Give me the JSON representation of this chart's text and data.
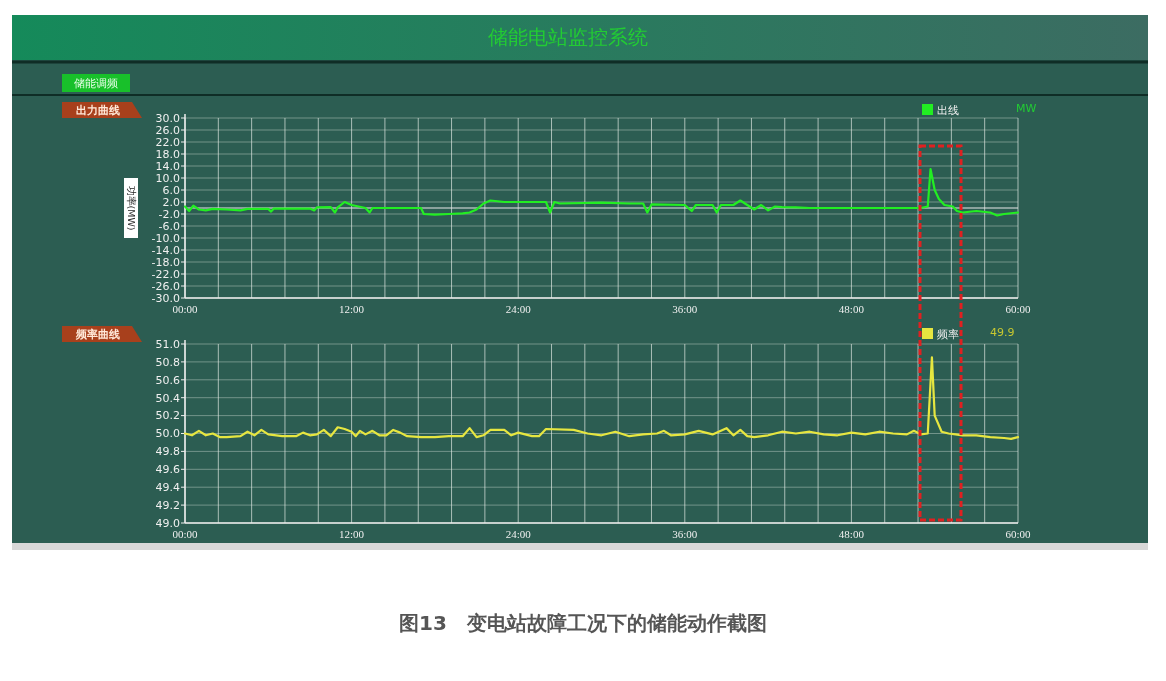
{
  "chart_data": [
    {
      "type": "line",
      "title": "出力曲线",
      "ylabel": "功率(MW)",
      "annotations": [
        "储能电站监控系统",
        "储能调频",
        "MW"
      ],
      "xlim": [
        0,
        60
      ],
      "ylim": [
        -30,
        30
      ],
      "xticks": [
        {
          "value": 0,
          "label": "00:00"
        },
        {
          "value": 2.4,
          "label": null
        },
        {
          "value": 4.8,
          "label": null
        },
        {
          "value": 7.2,
          "label": null
        },
        {
          "value": 9.6,
          "label": null
        },
        {
          "value": 12,
          "label": "12:00"
        },
        {
          "value": 14.4,
          "label": null
        },
        {
          "value": 16.8,
          "label": null
        },
        {
          "value": 19.2,
          "label": null
        },
        {
          "value": 21.6,
          "label": null
        },
        {
          "value": 24,
          "label": "24:00"
        },
        {
          "value": 26.4,
          "label": null
        },
        {
          "value": 28.8,
          "label": null
        },
        {
          "value": 31.2,
          "label": null
        },
        {
          "value": 33.6,
          "label": null
        },
        {
          "value": 36,
          "label": "36:00"
        },
        {
          "value": 38.4,
          "label": null
        },
        {
          "value": 40.8,
          "label": null
        },
        {
          "value": 43.2,
          "label": null
        },
        {
          "value": 45.6,
          "label": null
        },
        {
          "value": 48,
          "label": "48:00"
        },
        {
          "value": 50.4,
          "label": null
        },
        {
          "value": 52.8,
          "label": null
        },
        {
          "value": 55.2,
          "label": null
        },
        {
          "value": 57.6,
          "label": null
        },
        {
          "value": 60,
          "label": "60:00"
        }
      ],
      "yticks": [
        {
          "value": 30,
          "label": "30.0"
        },
        {
          "value": 26,
          "label": "26.0"
        },
        {
          "value": 22,
          "label": "22.0"
        },
        {
          "value": 18,
          "label": "18.0"
        },
        {
          "value": 14,
          "label": "14.0"
        },
        {
          "value": 10,
          "label": "10.0"
        },
        {
          "value": 6,
          "label": "6.0"
        },
        {
          "value": 2,
          "label": "2.0"
        },
        {
          "value": -2,
          "label": "-2.0"
        },
        {
          "value": -6,
          "label": "-6.0"
        },
        {
          "value": -10,
          "label": "-10.0"
        },
        {
          "value": -14,
          "label": "-14.0"
        },
        {
          "value": -18,
          "label": "-18.0"
        },
        {
          "value": -22,
          "label": "-22.0"
        },
        {
          "value": -26,
          "label": "-26.0"
        },
        {
          "value": -30,
          "label": "-30.0"
        }
      ],
      "grid": true,
      "legend": "top right",
      "ref_lines": [
        {
          "axis": "y",
          "value": 0,
          "color": "#e8e8e8"
        }
      ],
      "series": [
        {
          "name": "出线",
          "color": "#22ee22",
          "x": [
            0,
            0.3,
            0.6,
            1,
            1.5,
            2,
            3,
            4,
            4.5,
            6,
            6.2,
            6.4,
            9,
            9.3,
            9.5,
            10.5,
            10.8,
            11,
            11.5,
            12,
            12.5,
            13,
            13.3,
            13.5,
            16.5,
            17,
            17.2,
            18,
            19,
            20,
            20.5,
            21,
            21.5,
            22,
            23,
            25,
            26,
            26.3,
            26.6,
            27,
            30,
            32,
            33,
            33.3,
            33.6,
            36,
            36.5,
            36.8,
            38,
            38.3,
            38.6,
            39.5,
            40,
            40.5,
            41,
            41.5,
            42,
            42.5,
            43,
            44,
            45,
            50,
            53,
            53.5,
            53.7,
            54,
            54.3,
            54.7,
            55.3,
            55.6,
            56,
            57,
            58,
            58.5,
            59,
            60
          ],
          "values": [
            0.5,
            -1,
            0.8,
            -0.5,
            -0.8,
            -0.3,
            -0.5,
            -0.8,
            -0.3,
            -0.3,
            -1.2,
            -0.2,
            -0.2,
            -0.8,
            0.2,
            0.3,
            -1.5,
            0.2,
            2,
            1,
            0.5,
            0,
            -1.5,
            0,
            0,
            0,
            -2,
            -2.2,
            -2,
            -1.8,
            -1.5,
            -0.5,
            1.5,
            2.5,
            2,
            2,
            2,
            -1.5,
            2,
            1.5,
            1.8,
            1.5,
            1.5,
            -1.5,
            1.2,
            1,
            -1,
            1,
            1,
            -1.5,
            1,
            1,
            2.5,
            1,
            -0.5,
            1,
            -0.8,
            0.5,
            0.3,
            0.2,
            0,
            0,
            0,
            0.5,
            13,
            6,
            3,
            1,
            0.5,
            -1,
            -1.5,
            -1,
            -1.5,
            -2.5,
            -2,
            -1.5
          ]
        }
      ]
    },
    {
      "type": "line",
      "title": "频率曲线",
      "annotations": [
        "49.9",
        "图13　变电站故障工况下的储能动作截图"
      ],
      "xlim": [
        0,
        60
      ],
      "ylim": [
        49,
        51
      ],
      "xticks": [
        {
          "value": 0,
          "label": "00:00"
        },
        {
          "value": 2.4,
          "label": null
        },
        {
          "value": 4.8,
          "label": null
        },
        {
          "value": 7.2,
          "label": null
        },
        {
          "value": 9.6,
          "label": null
        },
        {
          "value": 12,
          "label": "12:00"
        },
        {
          "value": 14.4,
          "label": null
        },
        {
          "value": 16.8,
          "label": null
        },
        {
          "value": 19.2,
          "label": null
        },
        {
          "value": 21.6,
          "label": null
        },
        {
          "value": 24,
          "label": "24:00"
        },
        {
          "value": 26.4,
          "label": null
        },
        {
          "value": 28.8,
          "label": null
        },
        {
          "value": 31.2,
          "label": null
        },
        {
          "value": 33.6,
          "label": null
        },
        {
          "value": 36,
          "label": "36:00"
        },
        {
          "value": 38.4,
          "label": null
        },
        {
          "value": 40.8,
          "label": null
        },
        {
          "value": 43.2,
          "label": null
        },
        {
          "value": 45.6,
          "label": null
        },
        {
          "value": 48,
          "label": "48:00"
        },
        {
          "value": 50.4,
          "label": null
        },
        {
          "value": 52.8,
          "label": null
        },
        {
          "value": 55.2,
          "label": null
        },
        {
          "value": 57.6,
          "label": null
        },
        {
          "value": 60,
          "label": "60:00"
        }
      ],
      "yticks": [
        {
          "value": 51,
          "label": "51.0"
        },
        {
          "value": 50.8,
          "label": "50.8"
        },
        {
          "value": 50.6,
          "label": "50.6"
        },
        {
          "value": 50.4,
          "label": "50.4"
        },
        {
          "value": 50.2,
          "label": "50.2"
        },
        {
          "value": 50,
          "label": "50.0"
        },
        {
          "value": 49.8,
          "label": "49.8"
        },
        {
          "value": 49.6,
          "label": "49.6"
        },
        {
          "value": 49.4,
          "label": "49.4"
        },
        {
          "value": 49.2,
          "label": "49.2"
        },
        {
          "value": 49,
          "label": "49.0"
        }
      ],
      "grid": true,
      "legend": "top right",
      "series": [
        {
          "name": "频率",
          "color": "#e6e640",
          "x": [
            0,
            0.5,
            1,
            1.5,
            2,
            2.5,
            3,
            4,
            4.5,
            5,
            5.5,
            6,
            7,
            8,
            8.5,
            9,
            9.5,
            10,
            10.5,
            11,
            11.5,
            12,
            12.3,
            12.6,
            13,
            13.5,
            14,
            14.5,
            15,
            15.5,
            16,
            17,
            18,
            19,
            20,
            20.5,
            21,
            21.5,
            22,
            23,
            23.5,
            24,
            25,
            25.5,
            26,
            28,
            29,
            30,
            31,
            32,
            33,
            34,
            34.5,
            35,
            36,
            37,
            38,
            39,
            39.5,
            40,
            40.5,
            41,
            42,
            43,
            44,
            45,
            46,
            47,
            48,
            49,
            50,
            51,
            52,
            52.5,
            53,
            53.5,
            53.8,
            54,
            54.5,
            55,
            55.5,
            56,
            57,
            58,
            59,
            59.5,
            60
          ],
          "values": [
            50.0,
            49.98,
            50.03,
            49.98,
            50.0,
            49.96,
            49.96,
            49.97,
            50.02,
            49.98,
            50.04,
            49.99,
            49.97,
            49.97,
            50.01,
            49.98,
            49.99,
            50.04,
            49.97,
            50.07,
            50.05,
            50.02,
            49.97,
            50.03,
            49.99,
            50.03,
            49.98,
            49.98,
            50.04,
            50.01,
            49.97,
            49.96,
            49.96,
            49.97,
            49.97,
            50.06,
            49.96,
            49.98,
            50.04,
            50.04,
            49.98,
            50.01,
            49.97,
            49.97,
            50.05,
            50.04,
            50.0,
            49.98,
            50.02,
            49.97,
            49.99,
            50.0,
            50.03,
            49.98,
            49.99,
            50.03,
            49.99,
            50.06,
            49.98,
            50.04,
            49.97,
            49.96,
            49.98,
            50.02,
            50.0,
            50.02,
            49.99,
            49.98,
            50.01,
            49.99,
            50.02,
            50.0,
            49.99,
            50.03,
            49.99,
            50.0,
            50.85,
            50.2,
            50.02,
            50.0,
            49.99,
            49.98,
            49.98,
            49.96,
            49.95,
            49.94,
            49.96
          ]
        }
      ]
    }
  ]
}
